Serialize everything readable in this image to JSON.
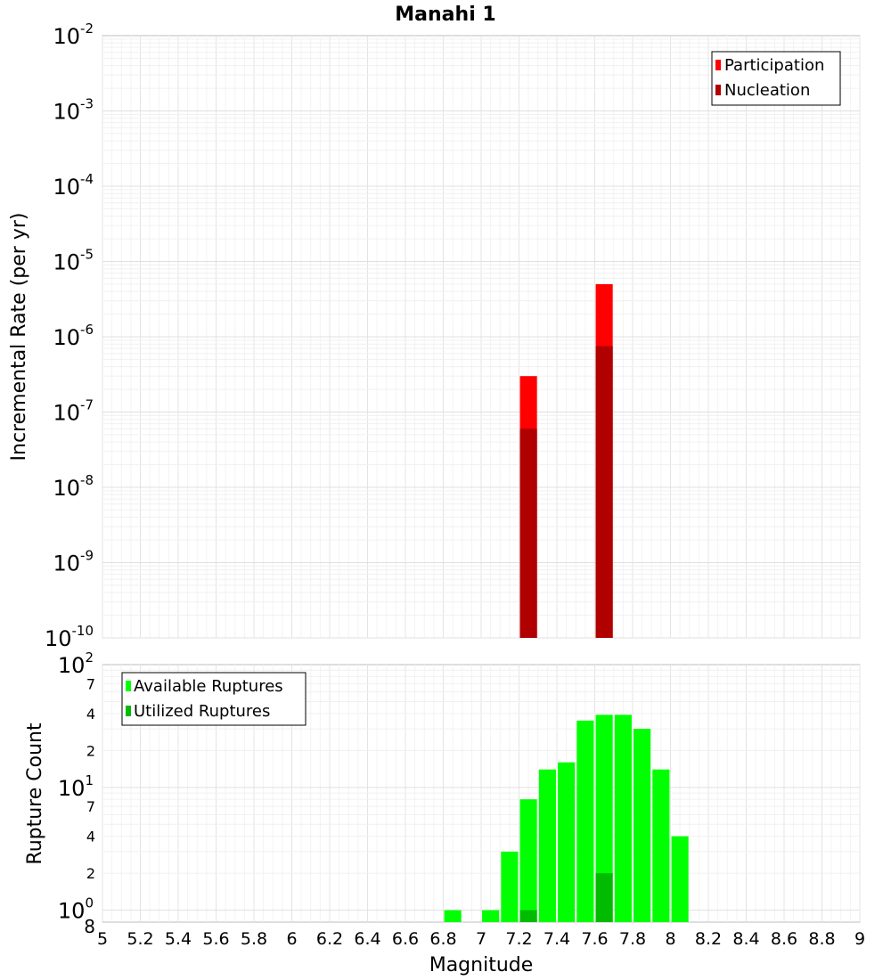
{
  "chart_data": [
    {
      "type": "bar",
      "title": "Manahi 1",
      "ylabel": "Incremental Rate (per yr)",
      "xlabel": "",
      "yscale": "log",
      "xlim": [
        5,
        9
      ],
      "ylim": [
        1e-10,
        0.01
      ],
      "y_tick_labels": [
        {
          "base": "10",
          "exp": "-2"
        },
        {
          "base": "10",
          "exp": "-3"
        },
        {
          "base": "10",
          "exp": "-4"
        },
        {
          "base": "10",
          "exp": "-5"
        },
        {
          "base": "10",
          "exp": "-6"
        },
        {
          "base": "10",
          "exp": "-7"
        },
        {
          "base": "10",
          "exp": "-8"
        },
        {
          "base": "10",
          "exp": "-9"
        },
        {
          "base": "10",
          "exp": "-10"
        }
      ],
      "legend_position": "top-right",
      "series": [
        {
          "name": "Participation",
          "color": "#ff0000",
          "x": [
            7.25,
            7.65
          ],
          "values": [
            3e-07,
            5e-06
          ]
        },
        {
          "name": "Nucleation",
          "color": "#b00000",
          "x": [
            7.25,
            7.65
          ],
          "values": [
            6e-08,
            7.5e-07
          ]
        }
      ],
      "bar_width": 0.09,
      "grid": true
    },
    {
      "type": "bar",
      "title": "",
      "ylabel": "Rupture Count",
      "xlabel": "Magnitude",
      "yscale": "log",
      "xlim": [
        5,
        9
      ],
      "ylim": [
        0.8,
        100
      ],
      "x_tick_labels": [
        "5",
        "5.2",
        "5.4",
        "5.6",
        "5.8",
        "6",
        "6.2",
        "6.4",
        "6.6",
        "6.8",
        "7",
        "7.2",
        "7.4",
        "7.6",
        "7.8",
        "8",
        "8.2",
        "8.4",
        "8.6",
        "8.8",
        "9"
      ],
      "y_tick_labels": [
        {
          "base": "10",
          "exp": "2"
        },
        {
          "label": "7"
        },
        {
          "label": "4"
        },
        {
          "label": "2"
        },
        {
          "base": "10",
          "exp": "1"
        },
        {
          "label": "7"
        },
        {
          "label": "4"
        },
        {
          "label": "2"
        },
        {
          "base": "10",
          "exp": "0"
        },
        {
          "label": "8"
        }
      ],
      "legend_position": "top-left",
      "series": [
        {
          "name": "Available Ruptures",
          "color": "#00ff00",
          "x": [
            6.85,
            7.05,
            7.15,
            7.25,
            7.35,
            7.45,
            7.55,
            7.65,
            7.75,
            7.85,
            7.95,
            8.05
          ],
          "values": [
            1,
            1,
            3,
            8,
            14,
            16,
            35,
            39,
            39,
            30,
            14,
            4
          ]
        },
        {
          "name": "Utilized Ruptures",
          "color": "#00bb00",
          "x": [
            7.25,
            7.65
          ],
          "values": [
            1,
            2
          ]
        }
      ],
      "bar_width": 0.09,
      "grid": true
    }
  ]
}
